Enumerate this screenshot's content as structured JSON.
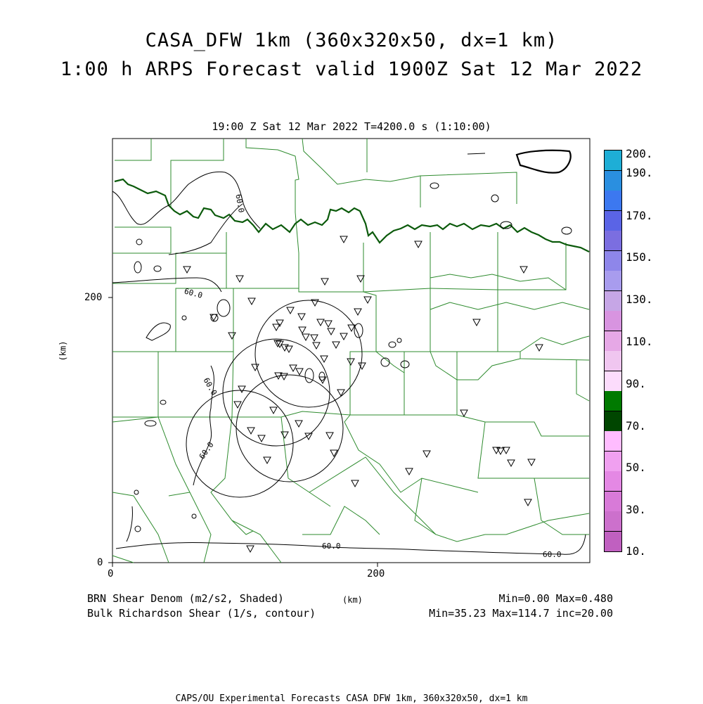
{
  "header": {
    "title_line1": "CASA_DFW 1km (360x320x50, dx=1 km)",
    "title_line2": "1:00 h ARPS Forecast valid 1900Z Sat 12 Mar 2022",
    "subtitle": "19:00 Z Sat 12 Mar 2022   T=4200.0 s (1:10:00)"
  },
  "axes": {
    "x_ticks": [
      "0",
      "200"
    ],
    "y_ticks": [
      "0",
      "200"
    ],
    "x_label": "(km)",
    "y_label": "(km)"
  },
  "colorbar": {
    "labels": [
      "200.",
      "190.",
      "170.",
      "150.",
      "130.",
      "110.",
      "90.",
      "70.",
      "50.",
      "30.",
      "10."
    ],
    "colors_top_to_bottom": [
      "#1eaed6",
      "#2a8fe0",
      "#3c78f0",
      "#5a64e6",
      "#7b6ee0",
      "#8e86ea",
      "#a89cee",
      "#c6a6e6",
      "#d894e0",
      "#e6a8e6",
      "#f0c6f0",
      "#fcdcfc",
      "#007a00",
      "#004600",
      "#ffbcff",
      "#f0a0f0",
      "#e488e4",
      "#d87ad8",
      "#cc70cc",
      "#c060c0"
    ]
  },
  "map": {
    "contour_label": "60.0"
  },
  "footer": {
    "left_line1": "BRN Shear Denom (m2/s2, Shaded)",
    "left_line2": "Bulk Richardson Shear (1/s, contour)",
    "center_unit": "(km)",
    "right_line1": "Min=0.00 Max=0.480",
    "right_line2": "Min=35.23 Max=114.7 inc=20.00",
    "credit": "CAPS/OU Experimental Forecasts  CASA DFW 1km, 360x320x50, dx=1 km"
  }
}
